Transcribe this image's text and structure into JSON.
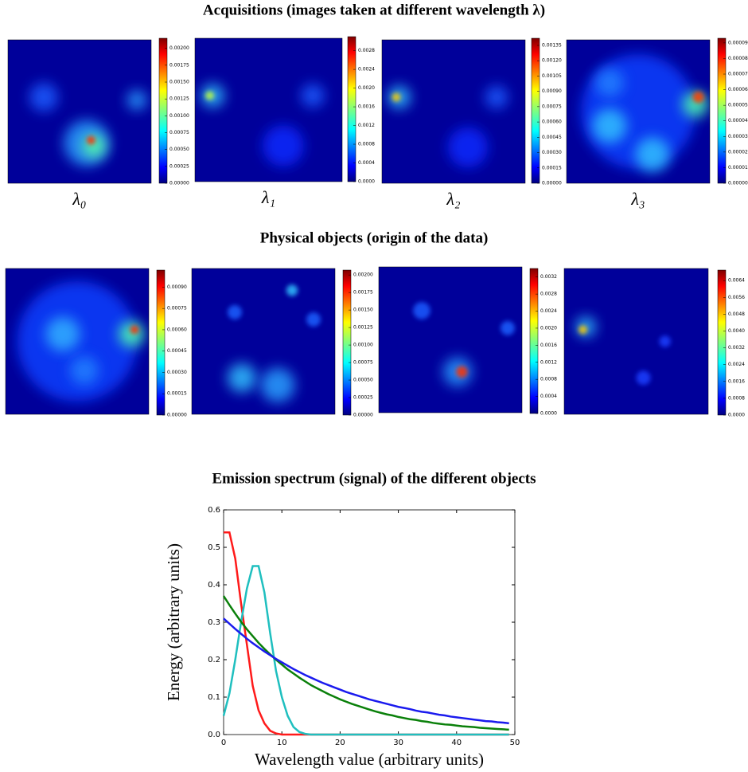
{
  "headings": [
    "Acquisitions (images taken at different wavelength λ)",
    "Physical objects (origin of the data)"
  ],
  "chart_data": [
    {
      "type": "heatmap",
      "label": "λ₀",
      "colorbar_lim": [
        0,
        0.00215
      ],
      "colorbar_ticks": [
        {
          "value": 0,
          "label": "0.00000"
        },
        {
          "value": 0.00025,
          "label": "0.00025"
        },
        {
          "value": 0.0005,
          "label": "0.00050"
        },
        {
          "value": 0.00075,
          "label": "0.00075"
        },
        {
          "value": 0.001,
          "label": "0.00100"
        },
        {
          "value": 0.00125,
          "label": "0.00125"
        },
        {
          "value": 0.0015,
          "label": "0.00150"
        },
        {
          "value": 0.00175,
          "label": "0.00175"
        },
        {
          "value": 0.002,
          "label": "0.00200"
        }
      ]
    },
    {
      "type": "heatmap",
      "label": "λ₁",
      "colorbar_lim": [
        0,
        0.0031
      ],
      "colorbar_ticks": [
        {
          "value": 0,
          "label": "0.0000"
        },
        {
          "value": 0.0004,
          "label": "0.0004"
        },
        {
          "value": 0.0008,
          "label": "0.0008"
        },
        {
          "value": 0.0012,
          "label": "0.0012"
        },
        {
          "value": 0.0016,
          "label": "0.0016"
        },
        {
          "value": 0.002,
          "label": "0.0020"
        },
        {
          "value": 0.0024,
          "label": "0.0024"
        },
        {
          "value": 0.0028,
          "label": "0.0028"
        }
      ]
    },
    {
      "type": "heatmap",
      "label": "λ₂",
      "colorbar_lim": [
        0,
        0.00142
      ],
      "colorbar_ticks": [
        {
          "value": 0,
          "label": "0.00000"
        },
        {
          "value": 0.00015,
          "label": "0.00015"
        },
        {
          "value": 0.0003,
          "label": "0.00030"
        },
        {
          "value": 0.00045,
          "label": "0.00045"
        },
        {
          "value": 0.0006,
          "label": "0.00060"
        },
        {
          "value": 0.00075,
          "label": "0.00075"
        },
        {
          "value": 0.0009,
          "label": "0.00090"
        },
        {
          "value": 0.00105,
          "label": "0.00105"
        },
        {
          "value": 0.0012,
          "label": "0.00120"
        },
        {
          "value": 0.00135,
          "label": "0.00135"
        }
      ]
    },
    {
      "type": "heatmap",
      "label": "λ₃",
      "colorbar_lim": [
        0,
        9.3e-05
      ],
      "colorbar_ticks": [
        {
          "value": 0,
          "label": "0.00000"
        },
        {
          "value": 1e-05,
          "label": "0.00001"
        },
        {
          "value": 2e-05,
          "label": "0.00002"
        },
        {
          "value": 3e-05,
          "label": "0.00003"
        },
        {
          "value": 4e-05,
          "label": "0.00004"
        },
        {
          "value": 5e-05,
          "label": "0.00005"
        },
        {
          "value": 6e-05,
          "label": "0.00006"
        },
        {
          "value": 7e-05,
          "label": "0.00007"
        },
        {
          "value": 8e-05,
          "label": "0.00008"
        },
        {
          "value": 9e-05,
          "label": "0.00009"
        }
      ]
    },
    {
      "type": "heatmap",
      "colorbar_lim": [
        0,
        0.00102
      ],
      "colorbar_ticks": [
        {
          "value": 0,
          "label": "0.00000"
        },
        {
          "value": 0.00015,
          "label": "0.00015"
        },
        {
          "value": 0.0003,
          "label": "0.00030"
        },
        {
          "value": 0.00045,
          "label": "0.00045"
        },
        {
          "value": 0.0006,
          "label": "0.00060"
        },
        {
          "value": 0.00075,
          "label": "0.00075"
        },
        {
          "value": 0.0009,
          "label": "0.00090"
        }
      ]
    },
    {
      "type": "heatmap",
      "colorbar_lim": [
        0,
        0.00207
      ],
      "colorbar_ticks": [
        {
          "value": 0,
          "label": "0.00000"
        },
        {
          "value": 0.00025,
          "label": "0.00025"
        },
        {
          "value": 0.0005,
          "label": "0.00050"
        },
        {
          "value": 0.00075,
          "label": "0.00075"
        },
        {
          "value": 0.001,
          "label": "0.00100"
        },
        {
          "value": 0.00125,
          "label": "0.00125"
        },
        {
          "value": 0.0015,
          "label": "0.00150"
        },
        {
          "value": 0.00175,
          "label": "0.00175"
        },
        {
          "value": 0.002,
          "label": "0.00200"
        }
      ]
    },
    {
      "type": "heatmap",
      "colorbar_lim": [
        0,
        0.0034
      ],
      "colorbar_ticks": [
        {
          "value": 0,
          "label": "0.0000"
        },
        {
          "value": 0.0004,
          "label": "0.0004"
        },
        {
          "value": 0.0008,
          "label": "0.0008"
        },
        {
          "value": 0.0012,
          "label": "0.0012"
        },
        {
          "value": 0.0016,
          "label": "0.0016"
        },
        {
          "value": 0.002,
          "label": "0.0020"
        },
        {
          "value": 0.0024,
          "label": "0.0024"
        },
        {
          "value": 0.0028,
          "label": "0.0028"
        },
        {
          "value": 0.0032,
          "label": "0.0032"
        }
      ]
    },
    {
      "type": "heatmap",
      "colorbar_lim": [
        0,
        0.0069
      ],
      "colorbar_ticks": [
        {
          "value": 0,
          "label": "0.0000"
        },
        {
          "value": 0.0008,
          "label": "0.0008"
        },
        {
          "value": 0.0016,
          "label": "0.0016"
        },
        {
          "value": 0.0024,
          "label": "0.0024"
        },
        {
          "value": 0.0032,
          "label": "0.0032"
        },
        {
          "value": 0.004,
          "label": "0.0040"
        },
        {
          "value": 0.0048,
          "label": "0.0048"
        },
        {
          "value": 0.0056,
          "label": "0.0056"
        },
        {
          "value": 0.0064,
          "label": "0.0064"
        }
      ]
    },
    {
      "type": "line",
      "title": "Emission spectrum (signal) of the different objects",
      "xlabel": "Wavelength value (arbitrary units)",
      "ylabel": "Energy (arbitrary units)",
      "xlim": [
        0,
        50
      ],
      "xticks": [
        0,
        10,
        20,
        30,
        40,
        50
      ],
      "ylim": [
        0,
        0.6
      ],
      "yticks": [
        {
          "value": 0,
          "label": "0.0"
        },
        0.1,
        0.2,
        0.3,
        0.4,
        0.5,
        0.6
      ],
      "x": [
        0,
        1,
        2,
        3,
        4,
        5,
        6,
        7,
        8,
        9,
        10,
        11,
        12,
        13,
        14,
        15,
        16,
        17,
        18,
        19,
        20,
        21,
        22,
        23,
        24,
        25,
        26,
        27,
        28,
        29,
        30,
        31,
        32,
        33,
        34,
        35,
        36,
        37,
        38,
        39,
        40,
        41,
        42,
        43,
        44,
        45,
        46,
        47,
        48,
        49
      ],
      "series": [
        {
          "color": "#ff1a1a",
          "values": [
            0.54,
            0.54,
            0.47,
            0.35,
            0.24,
            0.13,
            0.065,
            0.03,
            0.01,
            0.003,
            0,
            0,
            0,
            0,
            0,
            0,
            0,
            0,
            0,
            0,
            0,
            0,
            0,
            0,
            0,
            0,
            0,
            0,
            0,
            0,
            0,
            0,
            0,
            0,
            0,
            0,
            0,
            0,
            0,
            0,
            0,
            0,
            0,
            0,
            0,
            0,
            0,
            0,
            0,
            0
          ]
        },
        {
          "color": "#1fbfbf",
          "values": [
            0.05,
            0.11,
            0.2,
            0.3,
            0.39,
            0.45,
            0.45,
            0.38,
            0.27,
            0.17,
            0.1,
            0.05,
            0.02,
            0.007,
            0.002,
            0,
            0,
            0,
            0,
            0,
            0,
            0,
            0,
            0,
            0,
            0,
            0,
            0,
            0,
            0,
            0,
            0,
            0,
            0,
            0,
            0,
            0,
            0,
            0,
            0,
            0,
            0,
            0,
            0,
            0,
            0,
            0,
            0,
            0,
            0
          ]
        },
        {
          "color": "#0a800a",
          "values": [
            0.37,
            0.346,
            0.323,
            0.301,
            0.281,
            0.263,
            0.245,
            0.229,
            0.214,
            0.2,
            0.187,
            0.174,
            0.163,
            0.152,
            0.142,
            0.132,
            0.124,
            0.116,
            0.108,
            0.101,
            0.094,
            0.088,
            0.082,
            0.077,
            0.072,
            0.067,
            0.062,
            0.058,
            0.054,
            0.051,
            0.047,
            0.044,
            0.041,
            0.039,
            0.036,
            0.034,
            0.031,
            0.029,
            0.027,
            0.026,
            0.024,
            0.022,
            0.021,
            0.02,
            0.018,
            0.017,
            0.016,
            0.015,
            0.014,
            0.013
          ]
        },
        {
          "color": "#1a1aee",
          "values": [
            0.31,
            0.296,
            0.282,
            0.269,
            0.256,
            0.244,
            0.233,
            0.222,
            0.212,
            0.202,
            0.193,
            0.184,
            0.175,
            0.167,
            0.159,
            0.152,
            0.145,
            0.138,
            0.132,
            0.126,
            0.12,
            0.114,
            0.109,
            0.104,
            0.099,
            0.094,
            0.09,
            0.086,
            0.082,
            0.078,
            0.074,
            0.071,
            0.068,
            0.064,
            0.061,
            0.059,
            0.056,
            0.053,
            0.051,
            0.048,
            0.046,
            0.044,
            0.042,
            0.04,
            0.038,
            0.036,
            0.035,
            0.033,
            0.032,
            0.03
          ]
        }
      ]
    }
  ]
}
